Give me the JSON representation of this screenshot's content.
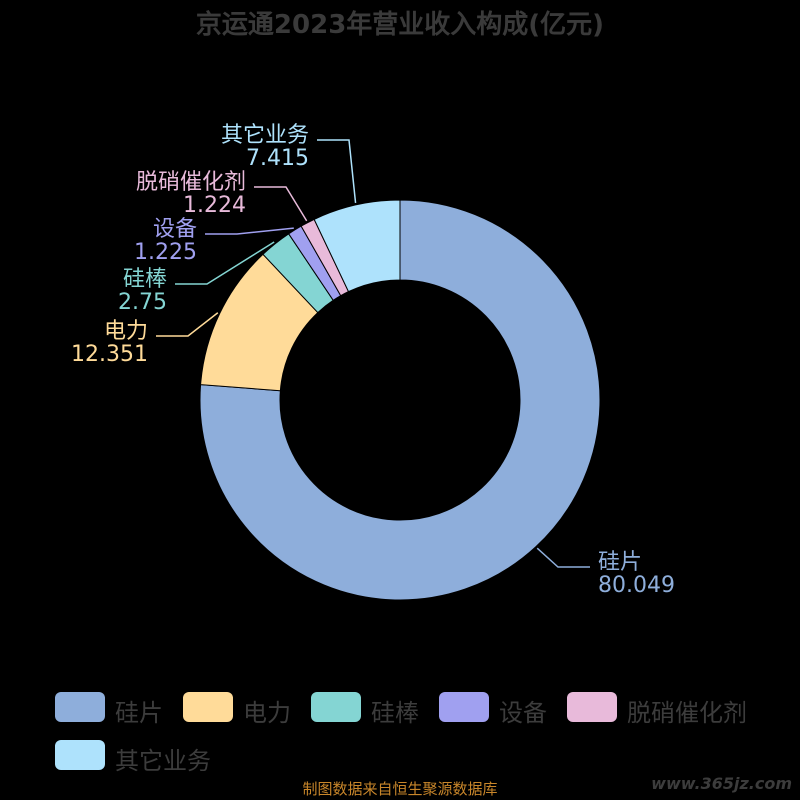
{
  "chart_data": {
    "type": "pie",
    "title": "京运通2023年营业收入构成(亿元)",
    "donut": true,
    "categories": [
      "硅片",
      "电力",
      "硅棒",
      "设备",
      "脱硝催化剂",
      "其它业务"
    ],
    "values": [
      80.049,
      12.351,
      2.75,
      1.225,
      1.224,
      7.415
    ],
    "value_labels": [
      "80.049",
      "12.351",
      "2.75",
      "1.225",
      "1.224",
      "7.415"
    ],
    "colors": [
      "#8EAEDB",
      "#FFDB99",
      "#84D5D3",
      "#A0A0F0",
      "#E8BADA",
      "#AEE2FC"
    ],
    "legend": {
      "placement": "bottom",
      "entries": [
        "硅片",
        "电力",
        "硅棒",
        "设备",
        "脱硝催化剂",
        "其它业务"
      ]
    }
  },
  "footer": {
    "source": "制图数据来自恒生聚源数据库",
    "watermark": "www.365jz.com"
  }
}
